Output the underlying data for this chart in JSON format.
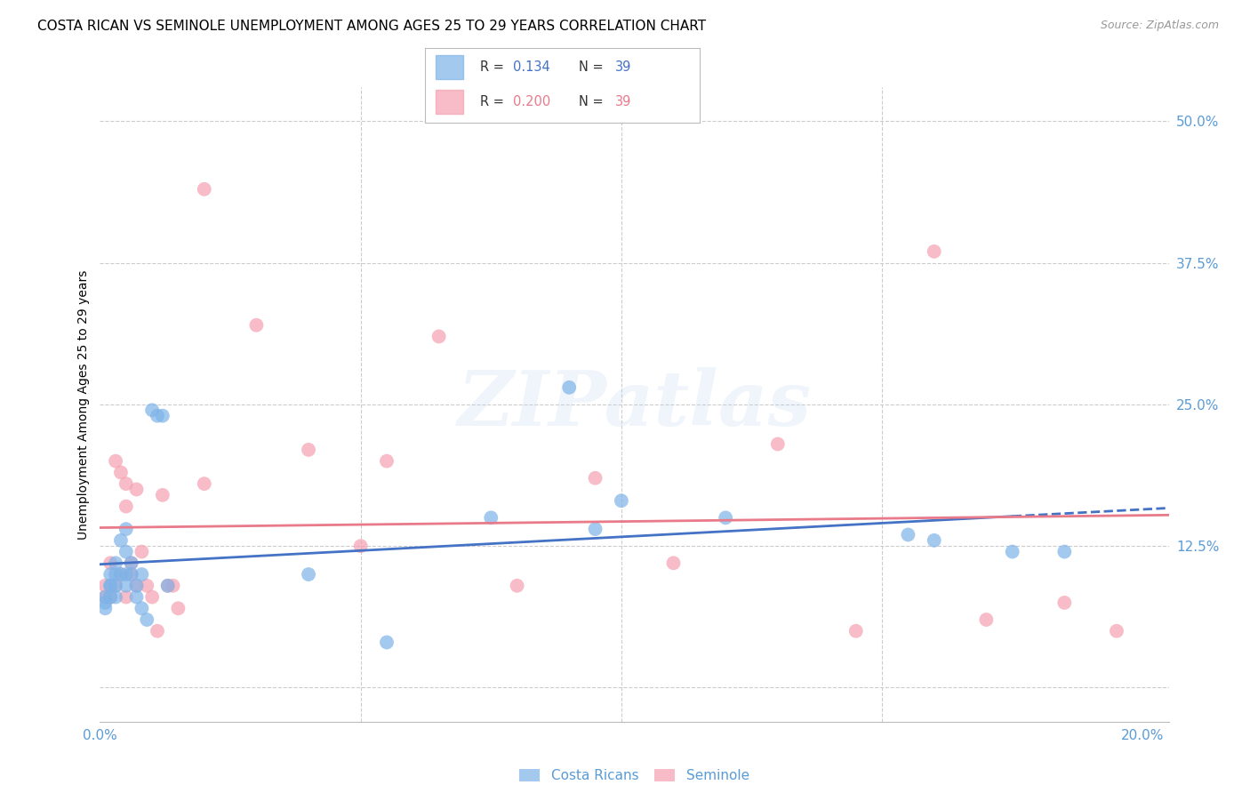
{
  "title": "COSTA RICAN VS SEMINOLE UNEMPLOYMENT AMONG AGES 25 TO 29 YEARS CORRELATION CHART",
  "source": "Source: ZipAtlas.com",
  "ylabel": "Unemployment Among Ages 25 to 29 years",
  "xlim": [
    0.0,
    0.205
  ],
  "ylim": [
    -0.03,
    0.53
  ],
  "xticks": [
    0.0,
    0.05,
    0.1,
    0.15,
    0.2
  ],
  "xtick_labels": [
    "0.0%",
    "",
    "",
    "",
    "20.0%"
  ],
  "yticks_right": [
    0.0,
    0.125,
    0.25,
    0.375,
    0.5
  ],
  "ytick_labels_right": [
    "",
    "12.5%",
    "25.0%",
    "37.5%",
    "50.0%"
  ],
  "grid_color": "#cccccc",
  "background_color": "#ffffff",
  "costa_ricans_color": "#7eb3e8",
  "seminole_color": "#f4a0b0",
  "watermark": "ZIPatlas",
  "title_fontsize": 11,
  "axis_label_fontsize": 10,
  "tick_fontsize": 11,
  "right_tick_color": "#5b9bd5",
  "line_blue_color": "#4472c4",
  "line_pink_color": "#e87a8a",
  "costa_ricans_x": [
    0.001,
    0.001,
    0.001,
    0.002,
    0.002,
    0.002,
    0.002,
    0.003,
    0.003,
    0.003,
    0.003,
    0.004,
    0.004,
    0.005,
    0.005,
    0.005,
    0.005,
    0.006,
    0.006,
    0.007,
    0.007,
    0.008,
    0.008,
    0.009,
    0.01,
    0.011,
    0.012,
    0.013,
    0.04,
    0.055,
    0.075,
    0.09,
    0.095,
    0.1,
    0.12,
    0.155,
    0.16,
    0.175,
    0.185
  ],
  "costa_ricans_y": [
    0.08,
    0.075,
    0.07,
    0.1,
    0.09,
    0.09,
    0.08,
    0.11,
    0.1,
    0.09,
    0.08,
    0.13,
    0.1,
    0.14,
    0.12,
    0.1,
    0.09,
    0.11,
    0.1,
    0.09,
    0.08,
    0.1,
    0.07,
    0.06,
    0.245,
    0.24,
    0.24,
    0.09,
    0.1,
    0.04,
    0.15,
    0.265,
    0.14,
    0.165,
    0.15,
    0.135,
    0.13,
    0.12,
    0.12
  ],
  "seminole_x": [
    0.001,
    0.001,
    0.002,
    0.002,
    0.003,
    0.003,
    0.004,
    0.004,
    0.005,
    0.005,
    0.005,
    0.006,
    0.006,
    0.007,
    0.007,
    0.008,
    0.009,
    0.01,
    0.011,
    0.012,
    0.013,
    0.014,
    0.015,
    0.02,
    0.03,
    0.04,
    0.055,
    0.065,
    0.08,
    0.095,
    0.11,
    0.13,
    0.145,
    0.16,
    0.17,
    0.185,
    0.195,
    0.02,
    0.05
  ],
  "seminole_y": [
    0.09,
    0.08,
    0.11,
    0.08,
    0.09,
    0.2,
    0.1,
    0.19,
    0.18,
    0.16,
    0.08,
    0.11,
    0.1,
    0.175,
    0.09,
    0.12,
    0.09,
    0.08,
    0.05,
    0.17,
    0.09,
    0.09,
    0.07,
    0.44,
    0.32,
    0.21,
    0.2,
    0.31,
    0.09,
    0.185,
    0.11,
    0.215,
    0.05,
    0.385,
    0.06,
    0.075,
    0.05,
    0.18,
    0.125
  ]
}
